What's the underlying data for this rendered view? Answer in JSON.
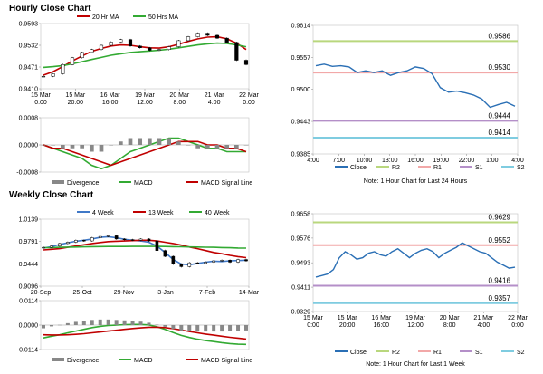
{
  "titles": {
    "hourly": "Hourly Close Chart",
    "weekly": "Weekly Close Chart"
  },
  "colors": {
    "price": "#000000",
    "ma_short": "#c00000",
    "ma_long": "#33aa33",
    "macd": "#33aa33",
    "macd_signal": "#c00000",
    "divergence": "#888888",
    "close_line": "#2a6fb5",
    "r2": "#b9d77d",
    "r1": "#f2a8a8",
    "s1": "#b48fc8",
    "s2": "#7fcce0",
    "ma_4wk": "#3f78c7",
    "ma_13wk": "#c00000",
    "ma_40wk": "#33aa33"
  },
  "chart_data": [
    {
      "id": "hourly_price",
      "type": "line",
      "legend": [
        "20 Hr MA",
        "50 Hrs MA"
      ],
      "yticks": [
        "0.9593",
        "0.9532",
        "0.9471",
        "0.9410"
      ],
      "ytick_values": [
        0.9593,
        0.9532,
        0.9471,
        0.941
      ],
      "ylim": [
        0.941,
        0.9593
      ],
      "xticks": [
        [
          "15 Mar",
          "0:00"
        ],
        [
          "15 Mar",
          "20:00"
        ],
        [
          "16 Mar",
          "16:00"
        ],
        [
          "19 Mar",
          "12:00"
        ],
        [
          "20 Mar",
          "8:00"
        ],
        [
          "21 Mar",
          "4:00"
        ],
        [
          "22 Mar",
          "0:00"
        ]
      ],
      "series": [
        {
          "name": "20 Hr MA",
          "color_key": "ma_short",
          "values": [
            0.9448,
            0.9458,
            0.9472,
            0.9488,
            0.9502,
            0.9515,
            0.9523,
            0.953,
            0.9533,
            0.9532,
            0.9528,
            0.9525,
            0.9524,
            0.9528,
            0.9535,
            0.9543,
            0.955,
            0.9555,
            0.9556,
            0.955,
            0.9538,
            0.952
          ]
        },
        {
          "name": "50 Hrs MA",
          "color_key": "ma_long",
          "values": [
            0.947,
            0.9472,
            0.9475,
            0.948,
            0.9486,
            0.9492,
            0.9498,
            0.9504,
            0.9508,
            0.9512,
            0.9514,
            0.9516,
            0.9518,
            0.9521,
            0.9525,
            0.9529,
            0.9533,
            0.9536,
            0.9538,
            0.9537,
            0.9533,
            0.9528
          ]
        },
        {
          "name": "Close",
          "color_key": "price",
          "values": [
            0.9445,
            0.9452,
            0.9478,
            0.9497,
            0.9512,
            0.952,
            0.9532,
            0.9541,
            0.9548,
            0.953,
            0.9525,
            0.9518,
            0.952,
            0.9528,
            0.9545,
            0.9556,
            0.9566,
            0.956,
            0.9552,
            0.954,
            0.949,
            0.9478
          ]
        }
      ]
    },
    {
      "id": "hourly_macd",
      "type": "line",
      "legend": [
        "Divergence",
        "MACD",
        "MACD Signal Line"
      ],
      "yticks": [
        "0.0008",
        "0.0000",
        "-0.0008"
      ],
      "ytick_values": [
        0.0008,
        0.0,
        -0.0008
      ],
      "ylim": [
        -0.0008,
        0.0008
      ],
      "series": [
        {
          "name": "MACD",
          "color_key": "macd",
          "values": [
            0.0,
            -0.0001,
            -0.0002,
            -0.0003,
            -0.0004,
            -0.0006,
            -0.0007,
            -0.0006,
            -0.0004,
            -0.0002,
            -0.0001,
            0.0,
            0.0001,
            0.0002,
            0.0002,
            0.0001,
            0.0,
            -0.0001,
            -0.0001,
            -0.0002,
            -0.0002,
            -0.0002
          ]
        },
        {
          "name": "MACD Signal Line",
          "color_key": "macd_signal",
          "values": [
            0.0,
            -0.0001,
            -0.0001,
            -0.0002,
            -0.0003,
            -0.0004,
            -0.0005,
            -0.0006,
            -0.0005,
            -0.0004,
            -0.0003,
            -0.0002,
            -0.0001,
            0.0,
            0.0001,
            0.0001,
            0.0001,
            0.0,
            0.0,
            -0.0001,
            -0.0001,
            -0.0002
          ]
        },
        {
          "name": "Divergence",
          "color_key": "divergence",
          "values": [
            0.0,
            0.0,
            -0.0001,
            -0.0001,
            -0.0001,
            -0.0002,
            -0.0002,
            0.0,
            0.0001,
            0.0002,
            0.0002,
            0.0002,
            0.0002,
            0.0002,
            0.0001,
            0.0,
            -0.0001,
            -0.0001,
            -0.0001,
            -0.0001,
            -0.0001,
            0.0
          ]
        }
      ]
    },
    {
      "id": "hourly_close_24h",
      "type": "line",
      "yticks": [
        "0.9614",
        "0.9557",
        "0.9500",
        "0.9443",
        "0.9385"
      ],
      "ytick_values": [
        0.9614,
        0.9557,
        0.95,
        0.9443,
        0.9385
      ],
      "ylim": [
        0.9385,
        0.9614
      ],
      "xticks": [
        "4:00",
        "7:00",
        "10:00",
        "13:00",
        "16:00",
        "19:00",
        "22:00",
        "1:00",
        "4:00"
      ],
      "levels": [
        {
          "name": "R2",
          "value": 0.9586,
          "label": "0.9586",
          "color_key": "r2"
        },
        {
          "name": "R1",
          "value": 0.953,
          "label": "0.9530",
          "color_key": "r1"
        },
        {
          "name": "S1",
          "value": 0.9444,
          "label": "0.9444",
          "color_key": "s1"
        },
        {
          "name": "S2",
          "value": 0.9414,
          "label": "0.9414",
          "color_key": "s2"
        }
      ],
      "legend": [
        "Close",
        "R2",
        "R1",
        "S1",
        "S2"
      ],
      "note": "Note: 1 Hour Chart for Last 24 Hours",
      "series": [
        {
          "name": "Close",
          "color_key": "close_line",
          "values": [
            0.9542,
            0.9545,
            0.9541,
            0.9542,
            0.954,
            0.953,
            0.9533,
            0.953,
            0.9533,
            0.9525,
            0.953,
            0.9533,
            0.954,
            0.9537,
            0.9528,
            0.9503,
            0.9495,
            0.9497,
            0.9494,
            0.949,
            0.9483,
            0.9468,
            0.9473,
            0.9477,
            0.947
          ]
        }
      ]
    },
    {
      "id": "weekly_price",
      "type": "line",
      "legend": [
        "4 Week",
        "13 Week",
        "40 Week"
      ],
      "yticks": [
        "1.0139",
        "0.9791",
        "0.9444",
        "0.9096"
      ],
      "ytick_values": [
        1.0139,
        0.9791,
        0.9444,
        0.9096
      ],
      "ylim": [
        0.9096,
        1.0139
      ],
      "xticks": [
        "20-Sep",
        "25-Oct",
        "29-Nov",
        "3-Jan",
        "7-Feb",
        "14-Mar"
      ],
      "series": [
        {
          "name": "4 Week",
          "color_key": "ma_4wk",
          "values": [
            0.969,
            0.971,
            0.9745,
            0.977,
            0.9795,
            0.981,
            0.983,
            0.9855,
            0.9865,
            0.985,
            0.9825,
            0.981,
            0.98,
            0.978,
            0.972,
            0.962,
            0.951,
            0.944,
            0.943,
            0.945,
            0.947,
            0.9485,
            0.948,
            0.949,
            0.9495,
            0.95
          ]
        },
        {
          "name": "13 Week",
          "color_key": "ma_13wk",
          "values": [
            0.966,
            0.967,
            0.968,
            0.97,
            0.972,
            0.974,
            0.976,
            0.9775,
            0.979,
            0.9795,
            0.98,
            0.9805,
            0.981,
            0.981,
            0.98,
            0.978,
            0.976,
            0.9735,
            0.9705,
            0.968,
            0.965,
            0.962,
            0.96,
            0.9575,
            0.9555,
            0.954
          ]
        },
        {
          "name": "40 Week",
          "color_key": "ma_40wk",
          "values": [
            0.9695,
            0.9697,
            0.97,
            0.9703,
            0.9705,
            0.9708,
            0.971,
            0.9712,
            0.9713,
            0.9714,
            0.9714,
            0.9715,
            0.9715,
            0.9716,
            0.9715,
            0.9713,
            0.9711,
            0.9709,
            0.9707,
            0.9705,
            0.9702,
            0.97,
            0.9697,
            0.9694,
            0.969,
            0.9688
          ]
        },
        {
          "name": "Close",
          "color_key": "price",
          "values": [
            0.97,
            0.972,
            0.976,
            0.978,
            0.981,
            0.98,
            0.985,
            0.987,
            0.988,
            0.983,
            0.982,
            0.981,
            0.983,
            0.98,
            0.965,
            0.956,
            0.944,
            0.94,
            0.946,
            0.945,
            0.947,
            0.949,
            0.95,
            0.947,
            0.951,
            0.949
          ]
        }
      ]
    },
    {
      "id": "weekly_macd",
      "type": "line",
      "legend": [
        "Divergence",
        "MACD",
        "MACD Signal Line"
      ],
      "yticks": [
        "0.0114",
        "0.0000",
        "-0.0114"
      ],
      "ytick_values": [
        0.0114,
        0.0,
        -0.0114
      ],
      "ylim": [
        -0.0114,
        0.0114
      ],
      "series": [
        {
          "name": "MACD",
          "color_key": "macd",
          "values": [
            -0.006,
            -0.0052,
            -0.0045,
            -0.0036,
            -0.0028,
            -0.002,
            -0.0012,
            -0.0006,
            -0.0002,
            0.0,
            0.0002,
            0.0003,
            0.0003,
            0.0001,
            -0.0008,
            -0.002,
            -0.0035,
            -0.0048,
            -0.0058,
            -0.0066,
            -0.0072,
            -0.0077,
            -0.0082,
            -0.0086,
            -0.0089,
            -0.009
          ]
        },
        {
          "name": "MACD Signal Line",
          "color_key": "macd_signal",
          "values": [
            -0.0045,
            -0.0046,
            -0.0046,
            -0.0045,
            -0.0043,
            -0.004,
            -0.0036,
            -0.0032,
            -0.0028,
            -0.0024,
            -0.002,
            -0.0016,
            -0.0013,
            -0.001,
            -0.001,
            -0.0012,
            -0.0017,
            -0.0023,
            -0.003,
            -0.0036,
            -0.0042,
            -0.0047,
            -0.0052,
            -0.0057,
            -0.0061,
            -0.0065
          ]
        },
        {
          "name": "Divergence",
          "color_key": "divergence",
          "values": [
            -0.0015,
            -0.0006,
            0.0001,
            0.0009,
            0.0015,
            0.002,
            0.0024,
            0.0026,
            0.0026,
            0.0024,
            0.0022,
            0.0019,
            0.0016,
            0.0011,
            0.0002,
            -0.0008,
            -0.0018,
            -0.0025,
            -0.0028,
            -0.003,
            -0.003,
            -0.003,
            -0.003,
            -0.0029,
            -0.0028,
            -0.0025
          ]
        }
      ]
    },
    {
      "id": "weekly_close_1wk",
      "type": "line",
      "yticks": [
        "0.9658",
        "0.9576",
        "0.9493",
        "0.9411",
        "0.9329"
      ],
      "ytick_values": [
        0.9658,
        0.9576,
        0.9493,
        0.9411,
        0.9329
      ],
      "ylim": [
        0.9329,
        0.9658
      ],
      "xticks": [
        [
          "15 Mar",
          "0:00"
        ],
        [
          "15 Mar",
          "20:00"
        ],
        [
          "16 Mar",
          "16:00"
        ],
        [
          "19 Mar",
          "12:00"
        ],
        [
          "20 Mar",
          "8:00"
        ],
        [
          "21 Mar",
          "4:00"
        ],
        [
          "22 Mar",
          "0:00"
        ]
      ],
      "levels": [
        {
          "name": "R2",
          "value": 0.9629,
          "label": "0.9629",
          "color_key": "r2"
        },
        {
          "name": "R1",
          "value": 0.9552,
          "label": "0.9552",
          "color_key": "r1"
        },
        {
          "name": "S1",
          "value": 0.9416,
          "label": "0.9416",
          "color_key": "s1"
        },
        {
          "name": "S2",
          "value": 0.9357,
          "label": "0.9357",
          "color_key": "s2"
        }
      ],
      "legend": [
        "Close",
        "R2",
        "R1",
        "S1",
        "S2"
      ],
      "note": "Note: 1 Hour Chart for Last 1 Week",
      "series": [
        {
          "name": "Close",
          "color_key": "close_line",
          "values": [
            0.9445,
            0.945,
            0.9455,
            0.947,
            0.951,
            0.953,
            0.952,
            0.9505,
            0.951,
            0.9525,
            0.953,
            0.952,
            0.9515,
            0.953,
            0.954,
            0.9525,
            0.951,
            0.9525,
            0.9535,
            0.954,
            0.953,
            0.951,
            0.9525,
            0.9535,
            0.9545,
            0.956,
            0.955,
            0.954,
            0.953,
            0.9525,
            0.951,
            0.9495,
            0.9485,
            0.9475,
            0.9478
          ]
        }
      ]
    }
  ]
}
